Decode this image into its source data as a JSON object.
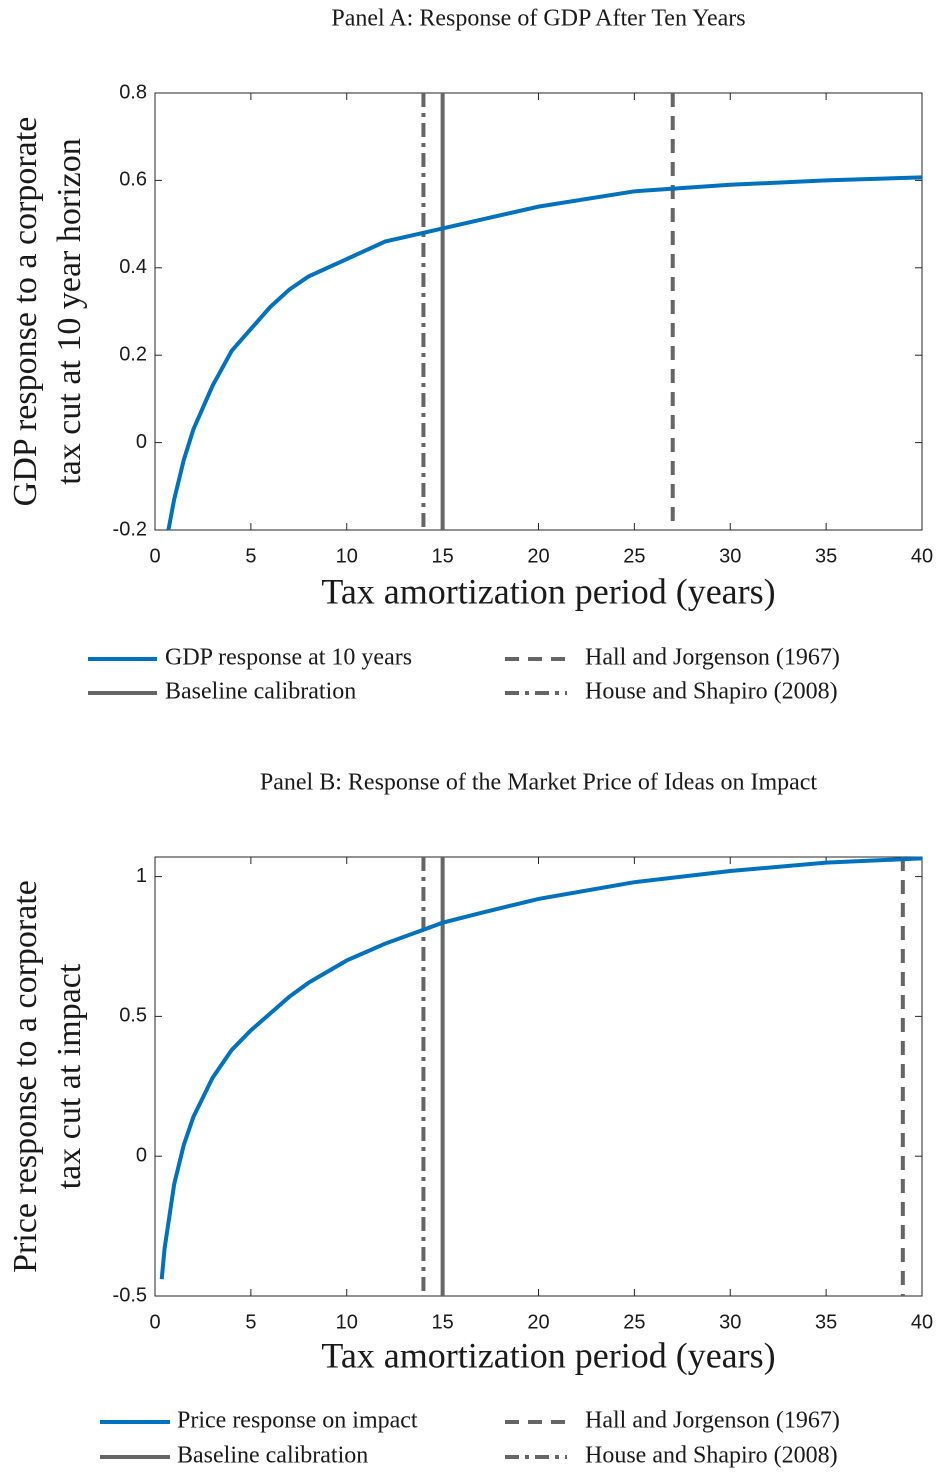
{
  "chart_data": [
    {
      "type": "line",
      "title": "Panel A: Response of GDP After Ten Years",
      "x_label": "Tax amortization period (years)",
      "y_label": [
        "GDP response to a corporate",
        "tax cut at 10 year horizon"
      ],
      "xlim": [
        0,
        40
      ],
      "xticks": [
        0,
        5,
        10,
        15,
        20,
        25,
        30,
        35,
        40
      ],
      "ylim": [
        -0.2,
        0.8
      ],
      "yticks": [
        -0.2,
        0,
        0.2,
        0.4,
        0.6,
        0.8
      ],
      "series": [
        {
          "name": "GDP response at 10 years",
          "color": "#0072BD",
          "x": [
            0.7,
            1,
            1.5,
            2,
            3,
            4,
            5,
            6,
            7,
            8,
            10,
            12,
            14,
            15,
            17,
            20,
            25,
            30,
            35,
            40
          ],
          "values": [
            -0.2,
            -0.13,
            -0.04,
            0.03,
            0.13,
            0.21,
            0.26,
            0.31,
            0.35,
            0.38,
            0.42,
            0.46,
            0.48,
            0.49,
            0.51,
            0.54,
            0.575,
            0.59,
            0.6,
            0.607
          ]
        }
      ],
      "vlines": [
        {
          "name": "Baseline calibration",
          "x": 15,
          "style": "solid",
          "color": "#666666"
        },
        {
          "name": "Hall and Jorgenson (1967)",
          "x": 27,
          "style": "dashed",
          "color": "#666666"
        },
        {
          "name": "House and Shapiro (2008)",
          "x": 14,
          "style": "dashdot",
          "color": "#666666"
        }
      ]
    },
    {
      "type": "line",
      "title": "Panel B: Response of the Market Price of Ideas on Impact",
      "x_label": "Tax amortization period (years)",
      "y_label": [
        "Price response to a corporate",
        "tax cut at impact"
      ],
      "xlim": [
        0,
        40
      ],
      "xticks": [
        0,
        5,
        10,
        15,
        20,
        25,
        30,
        35,
        40
      ],
      "ylim": [
        -0.5,
        1.07
      ],
      "yticks": [
        -0.5,
        0,
        0.5,
        1
      ],
      "series": [
        {
          "name": "Price response on impact",
          "color": "#0072BD",
          "x": [
            0.35,
            0.5,
            1,
            1.5,
            2,
            3,
            4,
            5,
            6,
            7,
            8,
            10,
            12,
            14,
            15,
            17,
            20,
            25,
            30,
            35,
            40
          ],
          "values": [
            -0.44,
            -0.33,
            -0.1,
            0.04,
            0.14,
            0.28,
            0.38,
            0.45,
            0.51,
            0.57,
            0.62,
            0.7,
            0.76,
            0.81,
            0.835,
            0.87,
            0.92,
            0.98,
            1.02,
            1.05,
            1.065
          ]
        }
      ],
      "vlines": [
        {
          "name": "Baseline calibration",
          "x": 15,
          "style": "solid",
          "color": "#666666"
        },
        {
          "name": "Hall and Jorgenson (1967)",
          "x": 39,
          "style": "dashed",
          "color": "#666666"
        },
        {
          "name": "House and Shapiro (2008)",
          "x": 14,
          "style": "dashdot",
          "color": "#666666"
        }
      ]
    }
  ]
}
